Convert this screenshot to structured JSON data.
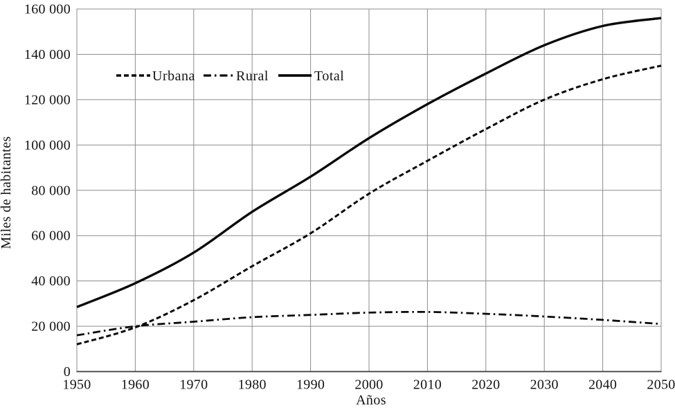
{
  "figure_title": "",
  "chart_data": {
    "type": "line",
    "title": "",
    "xlabel": "Años",
    "ylabel": "Miles de habitantes",
    "x": [
      1950,
      1960,
      1970,
      1980,
      1990,
      2000,
      2010,
      2020,
      2030,
      2040,
      2050
    ],
    "xlim": [
      1950,
      2050
    ],
    "ylim": [
      0,
      160000
    ],
    "xtick_step": 10,
    "ytick_step": 20000,
    "grid": true,
    "legend_position": "inside-top-left",
    "background_color": "#ffffff",
    "grid_color": "#8c8c8c",
    "line_color": "#0a0a0a",
    "series": [
      {
        "name": "Urbana",
        "style": "dashed",
        "color": "#0a0a0a",
        "values": [
          12000,
          19500,
          31500,
          46500,
          61000,
          78500,
          93000,
          107000,
          120000,
          129000,
          135000
        ]
      },
      {
        "name": "Rural",
        "style": "dashdot",
        "color": "#0a0a0a",
        "values": [
          16000,
          20000,
          22000,
          24000,
          25000,
          26000,
          26300,
          25500,
          24300,
          22800,
          21000
        ]
      },
      {
        "name": "Total",
        "style": "solid",
        "color": "#0a0a0a",
        "values": [
          28500,
          39000,
          52500,
          70500,
          86000,
          103000,
          118000,
          131500,
          144000,
          152500,
          156000
        ]
      }
    ]
  }
}
